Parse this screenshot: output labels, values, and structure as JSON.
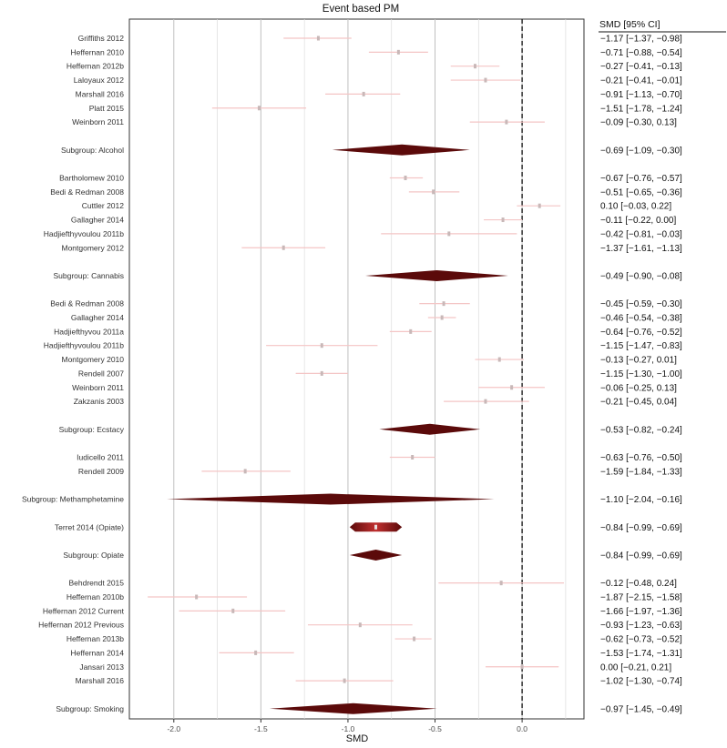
{
  "chart_data": {
    "type": "forest",
    "title": "Event based PM",
    "xlabel": "SMD",
    "ci_header": "SMD [95% CI]",
    "xlim": [
      -2.25,
      0.35
    ],
    "xticks": [
      -2.0,
      -1.5,
      -1.0,
      -0.5,
      0.0
    ],
    "xtick_labels": [
      "-2.0",
      "-1.5",
      "-1.0",
      "-0.5",
      "0.0"
    ],
    "reference_line": 0.0,
    "grid": true,
    "colors": {
      "study": "#f4c5c5",
      "study_point": "#c8b8b8",
      "subgroup": "#5b0a0a",
      "grid": "#c8c8c8"
    },
    "rows": [
      {
        "kind": "study",
        "label": "Griffiths 2012",
        "est": -1.17,
        "lo": -1.37,
        "hi": -0.98,
        "ci_text": "−1.17 [−1.37, −0.98]"
      },
      {
        "kind": "study",
        "label": "Heffernan 2010",
        "est": -0.71,
        "lo": -0.88,
        "hi": -0.54,
        "ci_text": "−0.71 [−0.88, −0.54]"
      },
      {
        "kind": "study",
        "label": "Heffernan 2012b",
        "est": -0.27,
        "lo": -0.41,
        "hi": -0.13,
        "ci_text": "−0.27 [−0.41, −0.13]"
      },
      {
        "kind": "study",
        "label": "Laloyaux 2012",
        "est": -0.21,
        "lo": -0.41,
        "hi": -0.01,
        "ci_text": "−0.21 [−0.41, −0.01]"
      },
      {
        "kind": "study",
        "label": "Marshall 2016",
        "est": -0.91,
        "lo": -1.13,
        "hi": -0.7,
        "ci_text": "−0.91 [−1.13, −0.70]"
      },
      {
        "kind": "study",
        "label": "Platt 2015",
        "est": -1.51,
        "lo": -1.78,
        "hi": -1.24,
        "ci_text": "−1.51 [−1.78, −1.24]"
      },
      {
        "kind": "study",
        "label": "Weinborn 2011",
        "est": -0.09,
        "lo": -0.3,
        "hi": 0.13,
        "ci_text": "−0.09 [−0.30,  0.13]"
      },
      {
        "kind": "gap"
      },
      {
        "kind": "subgroup",
        "label": "Subgroup: Alcohol",
        "est": -0.69,
        "lo": -1.09,
        "hi": -0.3,
        "ci_text": "−0.69 [−1.09, −0.30]"
      },
      {
        "kind": "gap"
      },
      {
        "kind": "study",
        "label": "Bartholomew 2010",
        "est": -0.67,
        "lo": -0.76,
        "hi": -0.57,
        "ci_text": "−0.67 [−0.76, −0.57]"
      },
      {
        "kind": "study",
        "label": "Bedi & Redman 2008",
        "est": -0.51,
        "lo": -0.65,
        "hi": -0.36,
        "ci_text": "−0.51 [−0.65, −0.36]"
      },
      {
        "kind": "study",
        "label": "Cuttler 2012",
        "est": 0.1,
        "lo": -0.03,
        "hi": 0.22,
        "ci_text": " 0.10 [−0.03,  0.22]"
      },
      {
        "kind": "study",
        "label": "Gallagher 2014",
        "est": -0.11,
        "lo": -0.22,
        "hi": 0.0,
        "ci_text": "−0.11 [−0.22,  0.00]"
      },
      {
        "kind": "study",
        "label": "Hadjiefthyvoulou 2011b",
        "est": -0.42,
        "lo": -0.81,
        "hi": -0.03,
        "ci_text": "−0.42 [−0.81, −0.03]"
      },
      {
        "kind": "study",
        "label": "Montgomery 2012",
        "est": -1.37,
        "lo": -1.61,
        "hi": -1.13,
        "ci_text": "−1.37 [−1.61, −1.13]"
      },
      {
        "kind": "gap"
      },
      {
        "kind": "subgroup",
        "label": "Subgroup: Cannabis",
        "est": -0.49,
        "lo": -0.9,
        "hi": -0.08,
        "ci_text": "−0.49 [−0.90, −0.08]"
      },
      {
        "kind": "gap"
      },
      {
        "kind": "study",
        "label": "Bedi & Redman 2008",
        "est": -0.45,
        "lo": -0.59,
        "hi": -0.3,
        "ci_text": "−0.45 [−0.59, −0.30]"
      },
      {
        "kind": "study",
        "label": "Gallagher 2014",
        "est": -0.46,
        "lo": -0.54,
        "hi": -0.38,
        "ci_text": "−0.46 [−0.54, −0.38]"
      },
      {
        "kind": "study",
        "label": "Hadjiefthyvou 2011a",
        "est": -0.64,
        "lo": -0.76,
        "hi": -0.52,
        "ci_text": "−0.64 [−0.76, −0.52]"
      },
      {
        "kind": "study",
        "label": "Hadjiefthyvoulou 2011b",
        "est": -1.15,
        "lo": -1.47,
        "hi": -0.83,
        "ci_text": "−1.15 [−1.47, −0.83]"
      },
      {
        "kind": "study",
        "label": "Montgomery 2010",
        "est": -0.13,
        "lo": -0.27,
        "hi": 0.01,
        "ci_text": "−0.13 [−0.27,  0.01]"
      },
      {
        "kind": "study",
        "label": "Rendell 2007",
        "est": -1.15,
        "lo": -1.3,
        "hi": -1.0,
        "ci_text": "−1.15 [−1.30, −1.00]"
      },
      {
        "kind": "study",
        "label": "Weinborn 2011",
        "est": -0.06,
        "lo": -0.25,
        "hi": 0.13,
        "ci_text": "−0.06 [−0.25,  0.13]"
      },
      {
        "kind": "study",
        "label": "Zakzanis 2003",
        "est": -0.21,
        "lo": -0.45,
        "hi": 0.04,
        "ci_text": "−0.21 [−0.45,  0.04]"
      },
      {
        "kind": "gap"
      },
      {
        "kind": "subgroup",
        "label": "Subgroup: Ecstacy",
        "est": -0.53,
        "lo": -0.82,
        "hi": -0.24,
        "ci_text": "−0.53 [−0.82, −0.24]"
      },
      {
        "kind": "gap"
      },
      {
        "kind": "study",
        "label": "Iudicello 2011",
        "est": -0.63,
        "lo": -0.76,
        "hi": -0.5,
        "ci_text": "−0.63 [−0.76, −0.50]"
      },
      {
        "kind": "study",
        "label": "Rendell 2009",
        "est": -1.59,
        "lo": -1.84,
        "hi": -1.33,
        "ci_text": "−1.59 [−1.84, −1.33]"
      },
      {
        "kind": "gap"
      },
      {
        "kind": "subgroup",
        "label": "Subgroup: Methamphetamine",
        "est": -1.1,
        "lo": -2.04,
        "hi": -0.16,
        "ci_text": "−1.10 [−2.04, −0.16]"
      },
      {
        "kind": "gap"
      },
      {
        "kind": "study-diamond",
        "label": "Terret 2014 (Opiate)",
        "est": -0.84,
        "lo": -0.99,
        "hi": -0.69,
        "ci_text": "−0.84 [−0.99, −0.69]"
      },
      {
        "kind": "gap"
      },
      {
        "kind": "subgroup",
        "label": "Subgroup: Opiate",
        "est": -0.84,
        "lo": -0.99,
        "hi": -0.69,
        "ci_text": "−0.84 [−0.99, −0.69]"
      },
      {
        "kind": "gap"
      },
      {
        "kind": "study",
        "label": "Behdrendt 2015",
        "est": -0.12,
        "lo": -0.48,
        "hi": 0.24,
        "ci_text": "−0.12 [−0.48,  0.24]"
      },
      {
        "kind": "study",
        "label": "Heffernan 2010b",
        "est": -1.87,
        "lo": -2.15,
        "hi": -1.58,
        "ci_text": "−1.87 [−2.15, −1.58]"
      },
      {
        "kind": "study",
        "label": "Heffernan 2012 Current",
        "est": -1.66,
        "lo": -1.97,
        "hi": -1.36,
        "ci_text": "−1.66 [−1.97, −1.36]"
      },
      {
        "kind": "study",
        "label": "Heffernan 2012 Previous",
        "est": -0.93,
        "lo": -1.23,
        "hi": -0.63,
        "ci_text": "−0.93 [−1.23, −0.63]"
      },
      {
        "kind": "study",
        "label": "Heffernan 2013b",
        "est": -0.62,
        "lo": -0.73,
        "hi": -0.52,
        "ci_text": "−0.62 [−0.73, −0.52]"
      },
      {
        "kind": "study",
        "label": "Heffernan 2014",
        "est": -1.53,
        "lo": -1.74,
        "hi": -1.31,
        "ci_text": "−1.53 [−1.74, −1.31]"
      },
      {
        "kind": "study",
        "label": "Jansari 2013",
        "est": 0.0,
        "lo": -0.21,
        "hi": 0.21,
        "ci_text": " 0.00 [−0.21,  0.21]"
      },
      {
        "kind": "study",
        "label": "Marshall 2016",
        "est": -1.02,
        "lo": -1.3,
        "hi": -0.74,
        "ci_text": "−1.02 [−1.30, −0.74]"
      },
      {
        "kind": "gap"
      },
      {
        "kind": "subgroup",
        "label": "Subgroup: Smoking",
        "est": -0.97,
        "lo": -1.45,
        "hi": -0.49,
        "ci_text": "−0.97 [−1.45, −0.49]"
      }
    ]
  }
}
